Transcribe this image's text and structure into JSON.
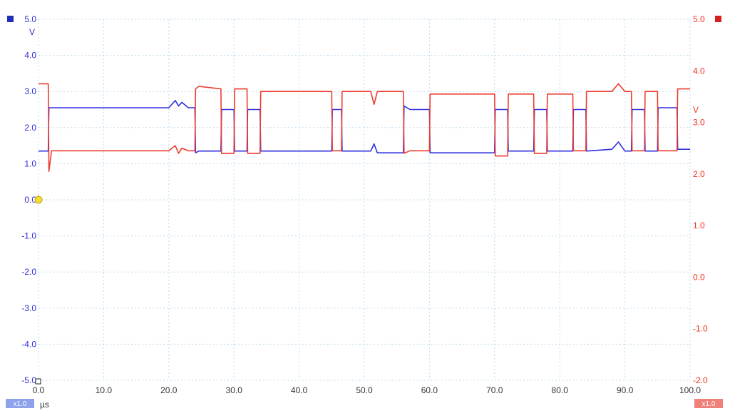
{
  "chart_data": {
    "type": "line",
    "title": "",
    "x_axis": {
      "unit": "µs",
      "range": [
        0,
        100
      ],
      "ticks": [
        "0.0",
        "10.0",
        "20.0",
        "30.0",
        "40.0",
        "50.0",
        "60.0",
        "70.0",
        "80.0",
        "90.0",
        "100.0"
      ],
      "zoom_label": "x1.0"
    },
    "y_axis_left": {
      "unit": "V",
      "color": "#2b2bd6",
      "range": [
        -5,
        5
      ],
      "ticks": [
        "5.0",
        "4.0",
        "3.0",
        "2.0",
        "1.0",
        "0.0",
        "-1.0",
        "-2.0",
        "-3.0",
        "-4.0",
        "-5.0"
      ],
      "zoom_label": "x1.0"
    },
    "y_axis_right": {
      "unit": "V",
      "color": "#ee3322",
      "range": [
        -2,
        5
      ],
      "ticks": [
        "5.0",
        "4.0",
        "3.0",
        "2.0",
        "1.0",
        "0.0",
        "-1.0",
        "-2.0"
      ],
      "zoom_label": "x1.0"
    },
    "grid": true,
    "series": [
      {
        "id": "channel-a",
        "axis": "left",
        "color": "#3030e0",
        "x": [
          0.0,
          1.5,
          1.6,
          2.0,
          2.1,
          15.0,
          20.0,
          21.0,
          21.5,
          22.0,
          23.0,
          24.0,
          24.1,
          24.6,
          28.0,
          28.1,
          30.0,
          30.1,
          32.0,
          32.1,
          34.0,
          34.1,
          45.0,
          45.1,
          46.5,
          46.6,
          51.0,
          51.5,
          52.0,
          56.0,
          56.1,
          57.0,
          60.0,
          60.1,
          64.0,
          70.0,
          70.1,
          72.0,
          72.1,
          76.0,
          76.1,
          78.0,
          78.1,
          82.0,
          82.1,
          84.0,
          84.1,
          88.0,
          89.0,
          90.0,
          91.0,
          91.1,
          93.0,
          93.1,
          95.0,
          95.1,
          98.0,
          98.1,
          100.0
        ],
        "y": [
          1.35,
          1.35,
          2.55,
          2.55,
          2.55,
          2.55,
          2.55,
          2.75,
          2.6,
          2.7,
          2.55,
          2.55,
          1.3,
          1.35,
          1.35,
          2.5,
          2.5,
          1.35,
          1.35,
          2.5,
          2.5,
          1.35,
          1.35,
          2.5,
          2.5,
          1.35,
          1.35,
          1.55,
          1.3,
          1.3,
          2.6,
          2.5,
          2.5,
          1.3,
          1.3,
          1.3,
          2.5,
          2.5,
          1.35,
          1.35,
          2.5,
          2.5,
          1.35,
          1.35,
          2.5,
          2.5,
          1.35,
          1.4,
          1.6,
          1.35,
          1.35,
          2.5,
          2.5,
          1.35,
          1.35,
          2.55,
          2.55,
          1.4,
          1.4
        ]
      },
      {
        "id": "channel-b",
        "axis": "right",
        "color": "#ee3b2e",
        "x": [
          0.0,
          1.5,
          1.6,
          2.0,
          2.1,
          15.0,
          20.0,
          21.0,
          21.5,
          22.0,
          23.0,
          24.0,
          24.1,
          24.6,
          28.0,
          28.1,
          30.0,
          30.1,
          32.0,
          32.1,
          34.0,
          34.1,
          45.0,
          45.1,
          46.5,
          46.6,
          51.0,
          51.5,
          52.0,
          56.0,
          56.1,
          57.0,
          60.0,
          60.1,
          64.0,
          70.0,
          70.1,
          72.0,
          72.1,
          76.0,
          76.1,
          78.0,
          78.1,
          82.0,
          82.1,
          84.0,
          84.1,
          88.0,
          89.0,
          90.0,
          91.0,
          91.1,
          93.0,
          93.1,
          95.0,
          95.1,
          98.0,
          98.1,
          100.0
        ],
        "y": [
          3.75,
          3.75,
          2.05,
          2.45,
          2.45,
          2.45,
          2.45,
          2.55,
          2.4,
          2.5,
          2.45,
          2.45,
          3.65,
          3.7,
          3.65,
          2.4,
          2.4,
          3.65,
          3.65,
          2.4,
          2.4,
          3.6,
          3.6,
          2.45,
          2.45,
          3.6,
          3.6,
          3.35,
          3.6,
          3.6,
          2.4,
          2.45,
          2.45,
          3.55,
          3.55,
          3.55,
          2.35,
          2.35,
          3.55,
          3.55,
          2.4,
          2.4,
          3.55,
          3.55,
          2.45,
          2.45,
          3.6,
          3.6,
          3.75,
          3.6,
          3.6,
          2.45,
          2.45,
          3.6,
          3.6,
          2.45,
          2.45,
          3.65,
          3.65
        ]
      }
    ],
    "markers": {
      "ground_marker": "yellow-circle",
      "ground_marker_color": "#f2dd3b"
    }
  }
}
